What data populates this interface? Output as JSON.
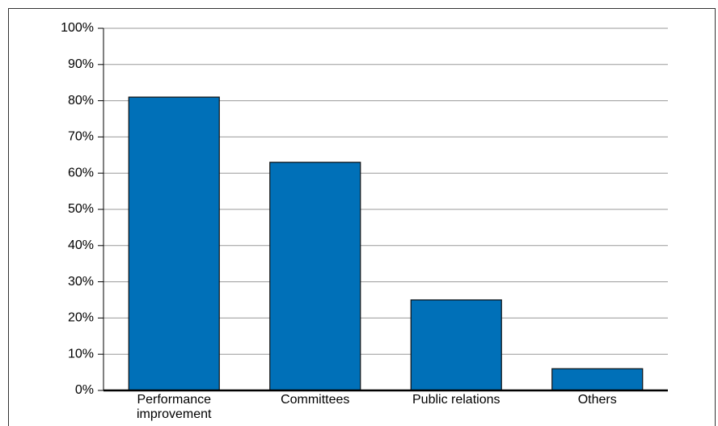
{
  "chart_data": {
    "type": "bar",
    "categories": [
      "Performance improvement",
      "Committees",
      "Public relations",
      "Others"
    ],
    "values": [
      81,
      63,
      25,
      6
    ],
    "color": "#0070b8",
    "ylim": [
      0,
      100
    ],
    "yticks": [
      {
        "value": 0,
        "label": "0%"
      },
      {
        "value": 10,
        "label": "10%"
      },
      {
        "value": 20,
        "label": "20%"
      },
      {
        "value": 30,
        "label": "30%"
      },
      {
        "value": 40,
        "label": "40%"
      },
      {
        "value": 50,
        "label": "50%"
      },
      {
        "value": 60,
        "label": "60%"
      },
      {
        "value": 70,
        "label": "70%"
      },
      {
        "value": 80,
        "label": "80%"
      },
      {
        "value": 90,
        "label": "90%"
      },
      {
        "value": 100,
        "label": "100%"
      }
    ],
    "grid": true
  }
}
